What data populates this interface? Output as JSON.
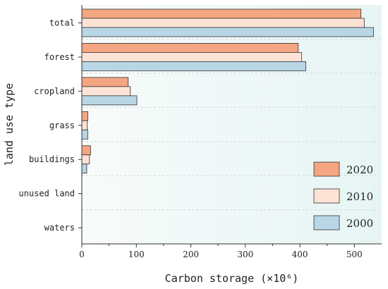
{
  "chart_data": {
    "type": "bar",
    "orientation": "horizontal",
    "categories": [
      "total",
      "forest",
      "cropland",
      "grass",
      "buildings",
      "unused land",
      "waters"
    ],
    "series": [
      {
        "name": "2020",
        "color": "#f4a582",
        "values": [
          512,
          397,
          85,
          11,
          16,
          0,
          0
        ]
      },
      {
        "name": "2010",
        "color": "#fde3d6",
        "values": [
          518,
          403,
          89,
          10,
          14,
          0,
          0
        ]
      },
      {
        "name": "2000",
        "color": "#b8d6e6",
        "values": [
          535,
          411,
          101,
          11,
          9,
          0,
          0
        ]
      }
    ],
    "xlabel": "Carbon storage (×10⁶)",
    "ylabel": "land use type",
    "xlim": [
      0,
      550
    ],
    "xticks": [
      0,
      100,
      200,
      300,
      400,
      500
    ],
    "legend_position": "bottom-right",
    "grid": "horizontal dashed",
    "background": "light blue-green gradient"
  }
}
